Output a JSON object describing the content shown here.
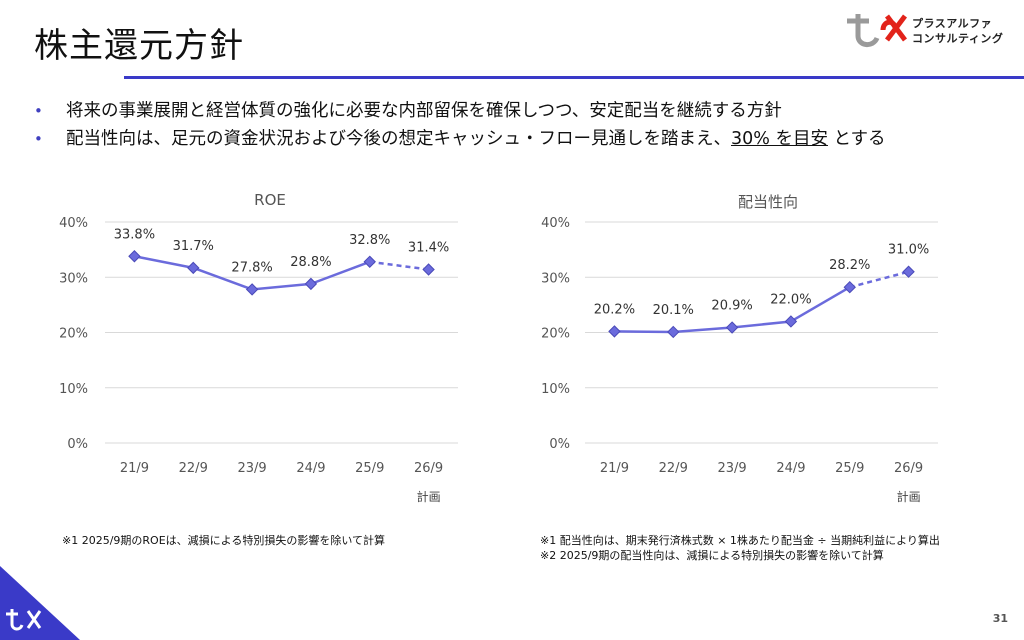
{
  "title": "株主還元方針",
  "logo": {
    "name_line1": "プラスアルファ",
    "name_line2": "コンサルティング"
  },
  "bullets": [
    {
      "text": "将来の事業展開と経営体質の強化に必要な内部留保を確保しつつ、安定配当を継続する方針"
    },
    {
      "text_before": "配当性向は、足元の資金状況および今後の想定キャッシュ・フロー見通しを踏まえ、",
      "text_underlined": "30% を目安",
      "text_after": " とする"
    }
  ],
  "colors": {
    "accent": "#3a3ac8",
    "line": "#6b6bdc",
    "marker": "#6b6bdc"
  },
  "chart_data": [
    {
      "type": "line",
      "title": "ROE",
      "categories": [
        "21/9",
        "22/9",
        "23/9",
        "24/9",
        "25/9",
        "26/9"
      ],
      "category_sub": [
        "",
        "",
        "",
        "",
        "",
        "計画"
      ],
      "values": [
        33.8,
        31.7,
        27.8,
        28.8,
        32.8,
        31.4
      ],
      "value_labels": [
        "33.8%",
        "31.7%",
        "27.8%",
        "28.8%",
        "32.8%",
        "31.4%"
      ],
      "dashed_last_segment": true,
      "ylim": [
        0,
        40
      ],
      "yticks": [
        "0%",
        "10%",
        "20%",
        "30%",
        "40%"
      ],
      "grid": true
    },
    {
      "type": "line",
      "title": "配当性向",
      "categories": [
        "21/9",
        "22/9",
        "23/9",
        "24/9",
        "25/9",
        "26/9"
      ],
      "category_sub": [
        "",
        "",
        "",
        "",
        "",
        "計画"
      ],
      "values": [
        20.2,
        20.1,
        20.9,
        22.0,
        28.2,
        31.0
      ],
      "value_labels": [
        "20.2%",
        "20.1%",
        "20.9%",
        "22.0%",
        "28.2%",
        "31.0%"
      ],
      "dashed_last_segment": true,
      "ylim": [
        0,
        40
      ],
      "yticks": [
        "0%",
        "10%",
        "20%",
        "30%",
        "40%"
      ],
      "grid": true
    }
  ],
  "notes": {
    "left": [
      "※1 2025/9期のROEは、減損による特別損失の影響を除いて計算"
    ],
    "right": [
      "※1 配当性向は、期末発行済株式数 × 1株あたり配当金 ÷ 当期純利益により算出",
      "※2 2025/9期の配当性向は、減損による特別損失の影響を除いて計算"
    ]
  },
  "page_number": "31"
}
